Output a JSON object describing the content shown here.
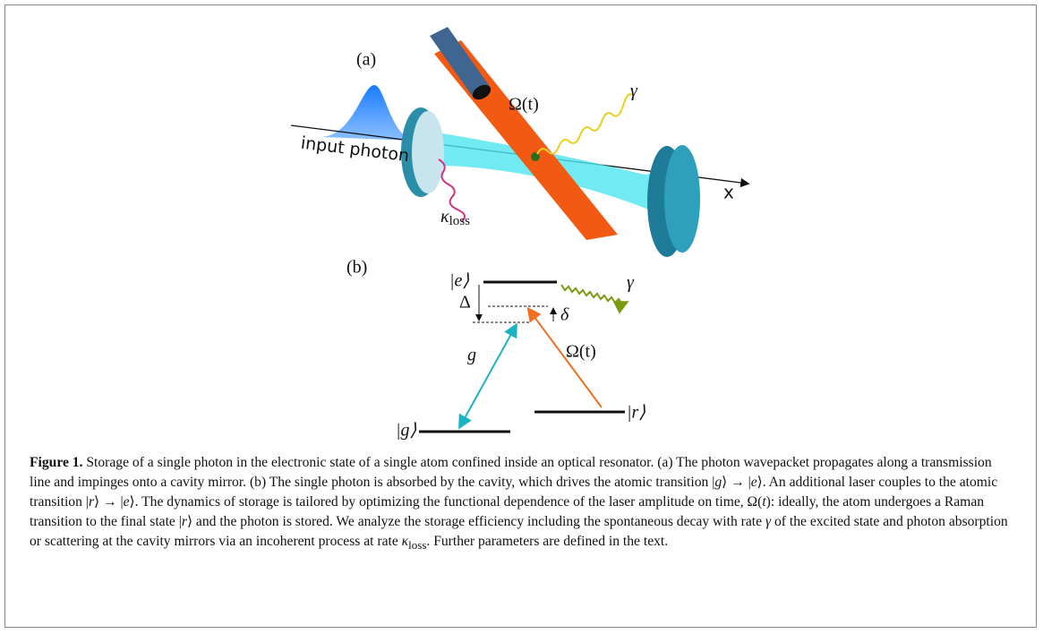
{
  "panel_a": {
    "label": "(a)",
    "omega": "Ω(t)",
    "gamma": "γ",
    "input": "input photon",
    "kappa": "κ",
    "kappa_sub": "loss",
    "axis": "x"
  },
  "panel_b": {
    "label": "(b)",
    "e": "|e⟩",
    "Delta": "Δ",
    "delta": "δ",
    "gamma": "γ",
    "g_coupling": "g",
    "omega": "Ω(t)",
    "g": "|g⟩",
    "r": "|r⟩"
  },
  "caption": {
    "label": "Figure 1.",
    "parts": [
      " Storage of a single photon in the electronic state of a single atom confined inside an optical resonator. (a) The photon wavepacket propagates along a transmission line and impinges onto a cavity mirror. (b) The single photon is absorbed by the cavity, which drives the atomic transition |",
      "g",
      "⟩ → |",
      "e",
      "⟩. An additional laser couples to the atomic transition |",
      "r",
      "⟩ → |",
      "e",
      "⟩. The dynamics of storage is tailored by optimizing the functional dependence of the laser amplitude on time, Ω(",
      "t",
      "): ideally, the atom undergoes a Raman transition to the final state |",
      "r",
      "⟩ and the photon is stored. We analyze the storage efficiency including the spontaneous decay with rate ",
      "γ",
      " of the excited state and photon absorption or scattering at the cavity mirrors via an incoherent process at rate ",
      "κ",
      "loss",
      ". Further parameters are defined in the text."
    ]
  }
}
